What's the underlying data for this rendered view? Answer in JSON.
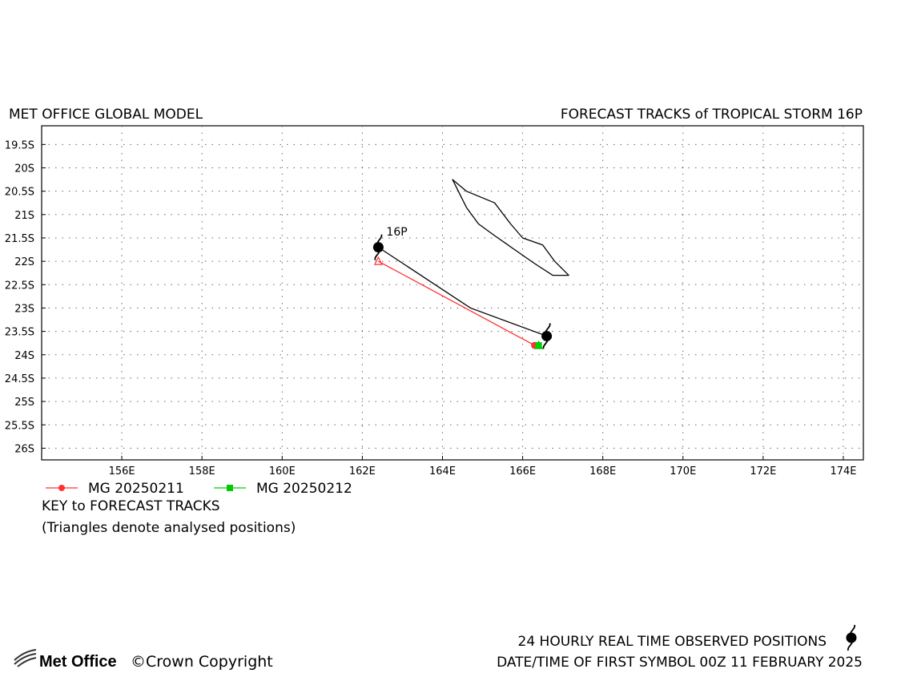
{
  "header": {
    "left_title": "MET OFFICE GLOBAL MODEL",
    "right_title": "FORECAST TRACKS of TROPICAL STORM 16P"
  },
  "map": {
    "lon_range": [
      154.0,
      174.5
    ],
    "lat_range": [
      -26.25,
      -19.1
    ],
    "lat_ticks": [
      {
        "value": -19.5,
        "label": "19.5S"
      },
      {
        "value": -20.0,
        "label": "20S"
      },
      {
        "value": -20.5,
        "label": "20.5S"
      },
      {
        "value": -21.0,
        "label": "21S"
      },
      {
        "value": -21.5,
        "label": "21.5S"
      },
      {
        "value": -22.0,
        "label": "22S"
      },
      {
        "value": -22.5,
        "label": "22.5S"
      },
      {
        "value": -23.0,
        "label": "23S"
      },
      {
        "value": -23.5,
        "label": "23.5S"
      },
      {
        "value": -24.0,
        "label": "24S"
      },
      {
        "value": -24.5,
        "label": "24.5S"
      },
      {
        "value": -25.0,
        "label": "25S"
      },
      {
        "value": -25.5,
        "label": "25.5S"
      },
      {
        "value": -26.0,
        "label": "26S"
      }
    ],
    "lon_ticks": [
      {
        "value": 156,
        "label": "156E"
      },
      {
        "value": 158,
        "label": "158E"
      },
      {
        "value": 160,
        "label": "160E"
      },
      {
        "value": 162,
        "label": "162E"
      },
      {
        "value": 164,
        "label": "164E"
      },
      {
        "value": 166,
        "label": "166E"
      },
      {
        "value": 168,
        "label": "168E"
      },
      {
        "value": 170,
        "label": "170E"
      },
      {
        "value": 172,
        "label": "172E"
      },
      {
        "value": 174,
        "label": "174E"
      }
    ],
    "grid": "dotted",
    "land_outline": [
      [
        164.25,
        -20.25
      ],
      [
        164.6,
        -20.5
      ],
      [
        165.3,
        -20.75
      ],
      [
        165.7,
        -21.2
      ],
      [
        166.0,
        -21.5
      ],
      [
        166.5,
        -21.65
      ],
      [
        166.8,
        -22.0
      ],
      [
        167.15,
        -22.3
      ],
      [
        166.75,
        -22.3
      ],
      [
        166.3,
        -22.05
      ],
      [
        165.8,
        -21.75
      ],
      [
        165.3,
        -21.45
      ],
      [
        164.9,
        -21.2
      ],
      [
        164.6,
        -20.85
      ],
      [
        164.25,
        -20.25
      ]
    ],
    "storm_label": "16P",
    "storm_label_position": [
      162.6,
      -21.45
    ]
  },
  "chart_data": {
    "type": "map-tracks",
    "observed_track": {
      "name": "24 HOURLY REAL TIME OBSERVED POSITIONS",
      "color": "#000000",
      "points": [
        {
          "lon": 162.4,
          "lat": -21.7
        },
        {
          "lon": 164.7,
          "lat": -23.0
        },
        {
          "lon": 166.6,
          "lat": -23.6
        }
      ]
    },
    "forecast_tracks": [
      {
        "name": "MG 20250211",
        "color": "#ff3333",
        "marker": "circle",
        "points": [
          {
            "lon": 162.4,
            "lat": -22.0
          },
          {
            "lon": 166.3,
            "lat": -23.8
          }
        ]
      },
      {
        "name": "MG 20250212",
        "color": "#00cc00",
        "marker": "square",
        "points": [
          {
            "lon": 166.4,
            "lat": -23.8
          }
        ]
      }
    ]
  },
  "legend": {
    "items": [
      {
        "label": "MG 20250211",
        "color": "#ff3333",
        "marker": "circle"
      },
      {
        "label": "MG 20250212",
        "color": "#00cc00",
        "marker": "square"
      }
    ],
    "key_title": "KEY to FORECAST TRACKS",
    "key_note": "(Triangles denote analysed positions)"
  },
  "footer": {
    "logo_text": "Met Office",
    "copyright": "©Crown Copyright",
    "observed_line": "24 HOURLY REAL TIME OBSERVED POSITIONS",
    "date_line": "DATE/TIME OF FIRST SYMBOL 00Z 11 FEBRUARY 2025"
  }
}
